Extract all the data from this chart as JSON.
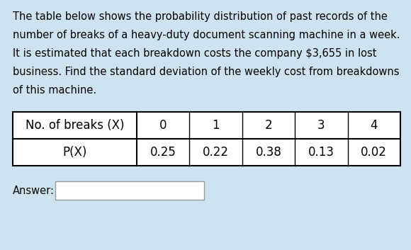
{
  "bg_color": "#cde4f0",
  "text_lines": [
    "The table below shows the probability distribution of past records of the",
    "number of breaks of a heavy-duty document scanning machine in a week.",
    "It is estimated that each breakdown costs the company $3,655 in lost",
    "business. Find the standard deviation of the weekly cost from breakdowns",
    "of this machine."
  ],
  "row1_header": "No. of breaks (X)",
  "row1_values": [
    "0",
    "1",
    "2",
    "3",
    "4"
  ],
  "row2_header": "P(X)",
  "row2_values": [
    "0.25",
    "0.22",
    "0.38",
    "0.13",
    "0.02"
  ],
  "answer_label": "Answer:",
  "answer_box_color": "#e8f4f8",
  "table_bg": "#ffffff",
  "font_size_text": 10.5,
  "font_size_table_header": 12,
  "font_size_table_val": 12
}
